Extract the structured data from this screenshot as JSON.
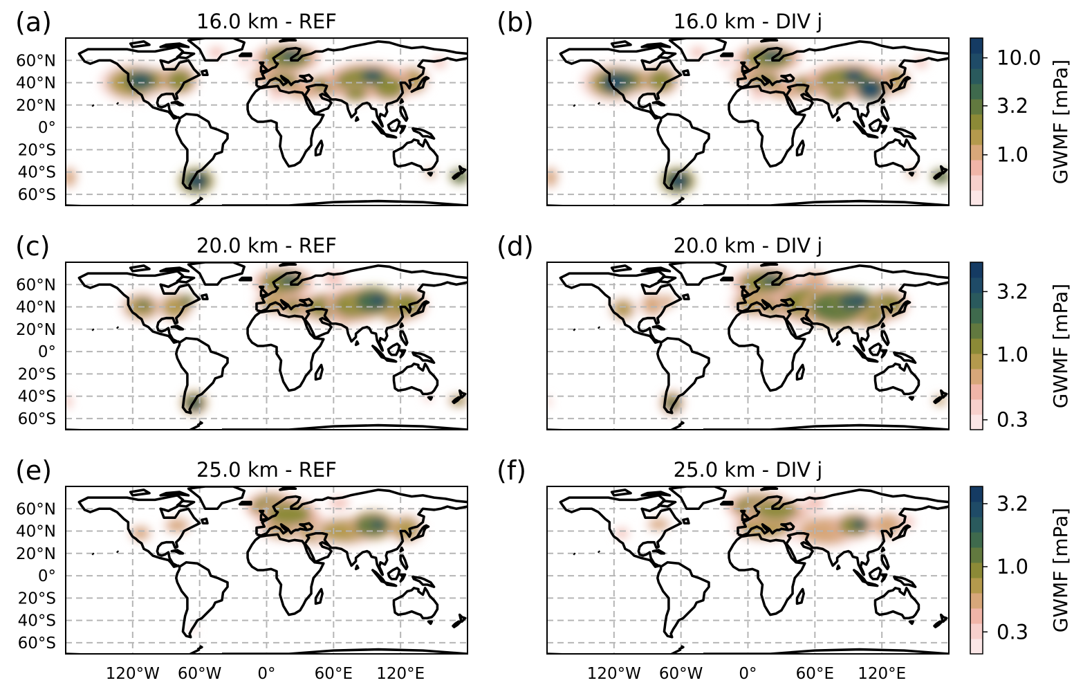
{
  "figure": {
    "panels": [
      {
        "letter": "(a)",
        "title": "16.0 km - REF",
        "scenario": "REF",
        "row": 0
      },
      {
        "letter": "(b)",
        "title": "16.0 km - DIV j",
        "scenario": "DIV",
        "row": 0
      },
      {
        "letter": "(c)",
        "title": "20.0 km - REF",
        "scenario": "REF",
        "row": 1
      },
      {
        "letter": "(d)",
        "title": "20.0 km - DIV j",
        "scenario": "DIV",
        "row": 1
      },
      {
        "letter": "(e)",
        "title": "25.0 km - REF",
        "scenario": "REF",
        "row": 2
      },
      {
        "letter": "(f)",
        "title": "25.0 km - DIV j",
        "scenario": "DIV",
        "row": 2
      }
    ],
    "lat_ticks": [
      "60°N",
      "40°N",
      "20°N",
      "0°",
      "20°S",
      "40°S",
      "60°S"
    ],
    "lat_values": [
      60,
      40,
      20,
      0,
      -20,
      -40,
      -60
    ],
    "lon_ticks": [
      "120°W",
      "60°W",
      "0°",
      "60°E",
      "120°E"
    ],
    "lon_values": [
      -120,
      -60,
      0,
      60,
      120
    ],
    "extent": {
      "lon": [
        -180,
        180
      ],
      "lat": [
        -70,
        80
      ]
    },
    "colorbars": [
      {
        "label": "GWMF [mPa]",
        "ticks": [
          "10.0",
          "3.2",
          "1.0"
        ],
        "tick_values": [
          10.0,
          3.2,
          1.0
        ],
        "range_mPa": [
          0.3,
          16
        ]
      },
      {
        "label": "GWMF [mPa]",
        "ticks": [
          "3.2",
          "1.0",
          "0.3"
        ],
        "tick_values": [
          3.2,
          1.0,
          0.3
        ],
        "range_mPa": [
          0.25,
          5.5
        ]
      },
      {
        "label": "GWMF [mPa]",
        "ticks": [
          "3.2",
          "1.0",
          "0.3"
        ],
        "tick_values": [
          3.2,
          1.0,
          0.3
        ],
        "range_mPa": [
          0.2,
          4.4
        ]
      }
    ],
    "colors": {
      "levels": [
        "#fbe6e6",
        "#f7d0cc",
        "#f0b5a8",
        "#d7a77a",
        "#b49a4d",
        "#8c8a37",
        "#62793f",
        "#3f6a4d",
        "#2a5a5d",
        "#1f4b67",
        "#153b63"
      ],
      "grid": "#b5b5b5",
      "coast": "#000000"
    }
  }
}
